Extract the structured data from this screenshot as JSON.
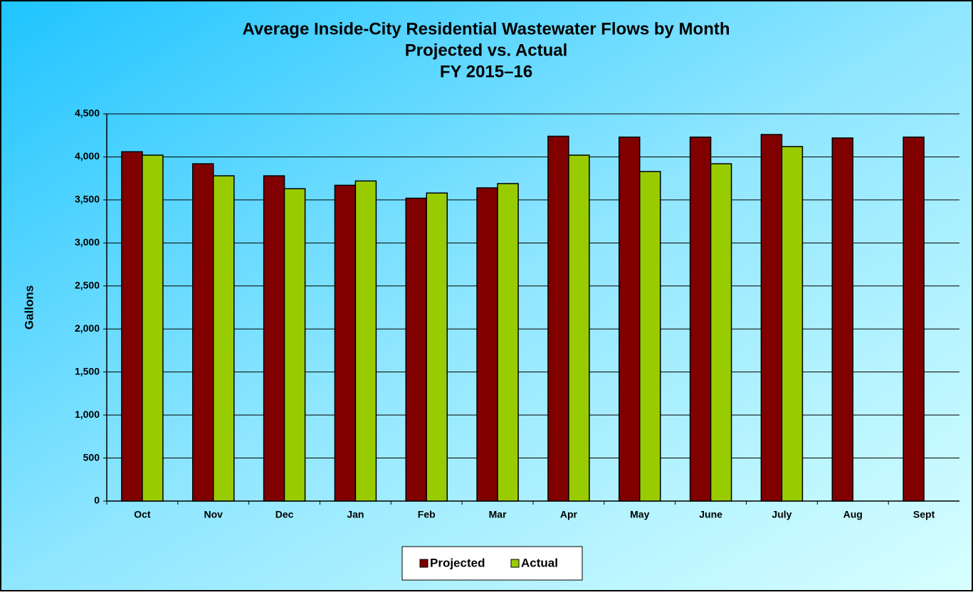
{
  "chart_data": {
    "type": "bar",
    "title": [
      "Average Inside-City Residential Wastewater Flows by Month",
      "Projected vs. Actual",
      "FY 2015–16"
    ],
    "y_label": "Gallons",
    "categories": [
      "Oct",
      "Nov",
      "Dec",
      "Jan",
      "Feb",
      "Mar",
      "Apr",
      "May",
      "June",
      "July",
      "Aug",
      "Sept"
    ],
    "series": [
      {
        "name": "Projected",
        "color": "#800000",
        "values": [
          4060,
          3920,
          3780,
          3670,
          3520,
          3640,
          4240,
          4230,
          4230,
          4260,
          4220,
          4230
        ]
      },
      {
        "name": "Actual",
        "color": "#99cc00",
        "values": [
          4020,
          3780,
          3630,
          3720,
          3580,
          3690,
          4020,
          3830,
          3920,
          4120,
          null,
          null
        ]
      }
    ],
    "ylim": [
      0,
      4500
    ],
    "yticks": [
      0,
      {
        "value": 500,
        "label": "500"
      },
      {
        "value": 1000,
        "label": "1,000"
      },
      {
        "value": 1500,
        "label": "1,500"
      },
      {
        "value": 2000,
        "label": "2,000"
      },
      {
        "value": 2500,
        "label": "2,500"
      },
      {
        "value": 3000,
        "label": "3,000"
      },
      {
        "value": 3500,
        "label": "3,500"
      },
      {
        "value": 4000,
        "label": "4,000"
      },
      {
        "value": 4500,
        "label": "4,500"
      }
    ],
    "grid": true,
    "legend": "bottom"
  }
}
